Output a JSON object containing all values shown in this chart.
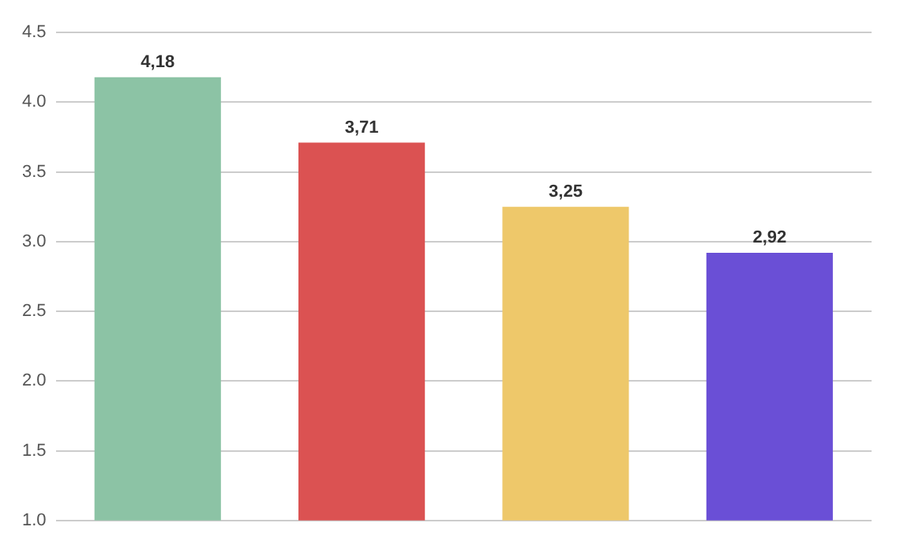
{
  "chart_data": {
    "type": "bar",
    "categories": [
      null,
      null,
      null,
      null
    ],
    "values": [
      4.18,
      3.71,
      3.25,
      2.92
    ],
    "colors": [
      "#8cc3a5",
      "#db5252",
      "#eec86a",
      "#6a4fd6"
    ],
    "value_labels": [
      "4,18",
      "3,71",
      "3,25",
      "2,92"
    ],
    "ylim": [
      1,
      4.5
    ],
    "yticks": [
      {
        "value": 1,
        "label": "1.0"
      },
      {
        "value": 1.5,
        "label": "1.5"
      },
      {
        "value": 2,
        "label": "2.0"
      },
      {
        "value": 2.5,
        "label": "2.5"
      },
      {
        "value": 3,
        "label": "3.0"
      },
      {
        "value": 3.5,
        "label": "3.5"
      },
      {
        "value": 4,
        "label": "4.0"
      },
      {
        "value": 4.5,
        "label": "4.5"
      }
    ],
    "grid": "y"
  }
}
